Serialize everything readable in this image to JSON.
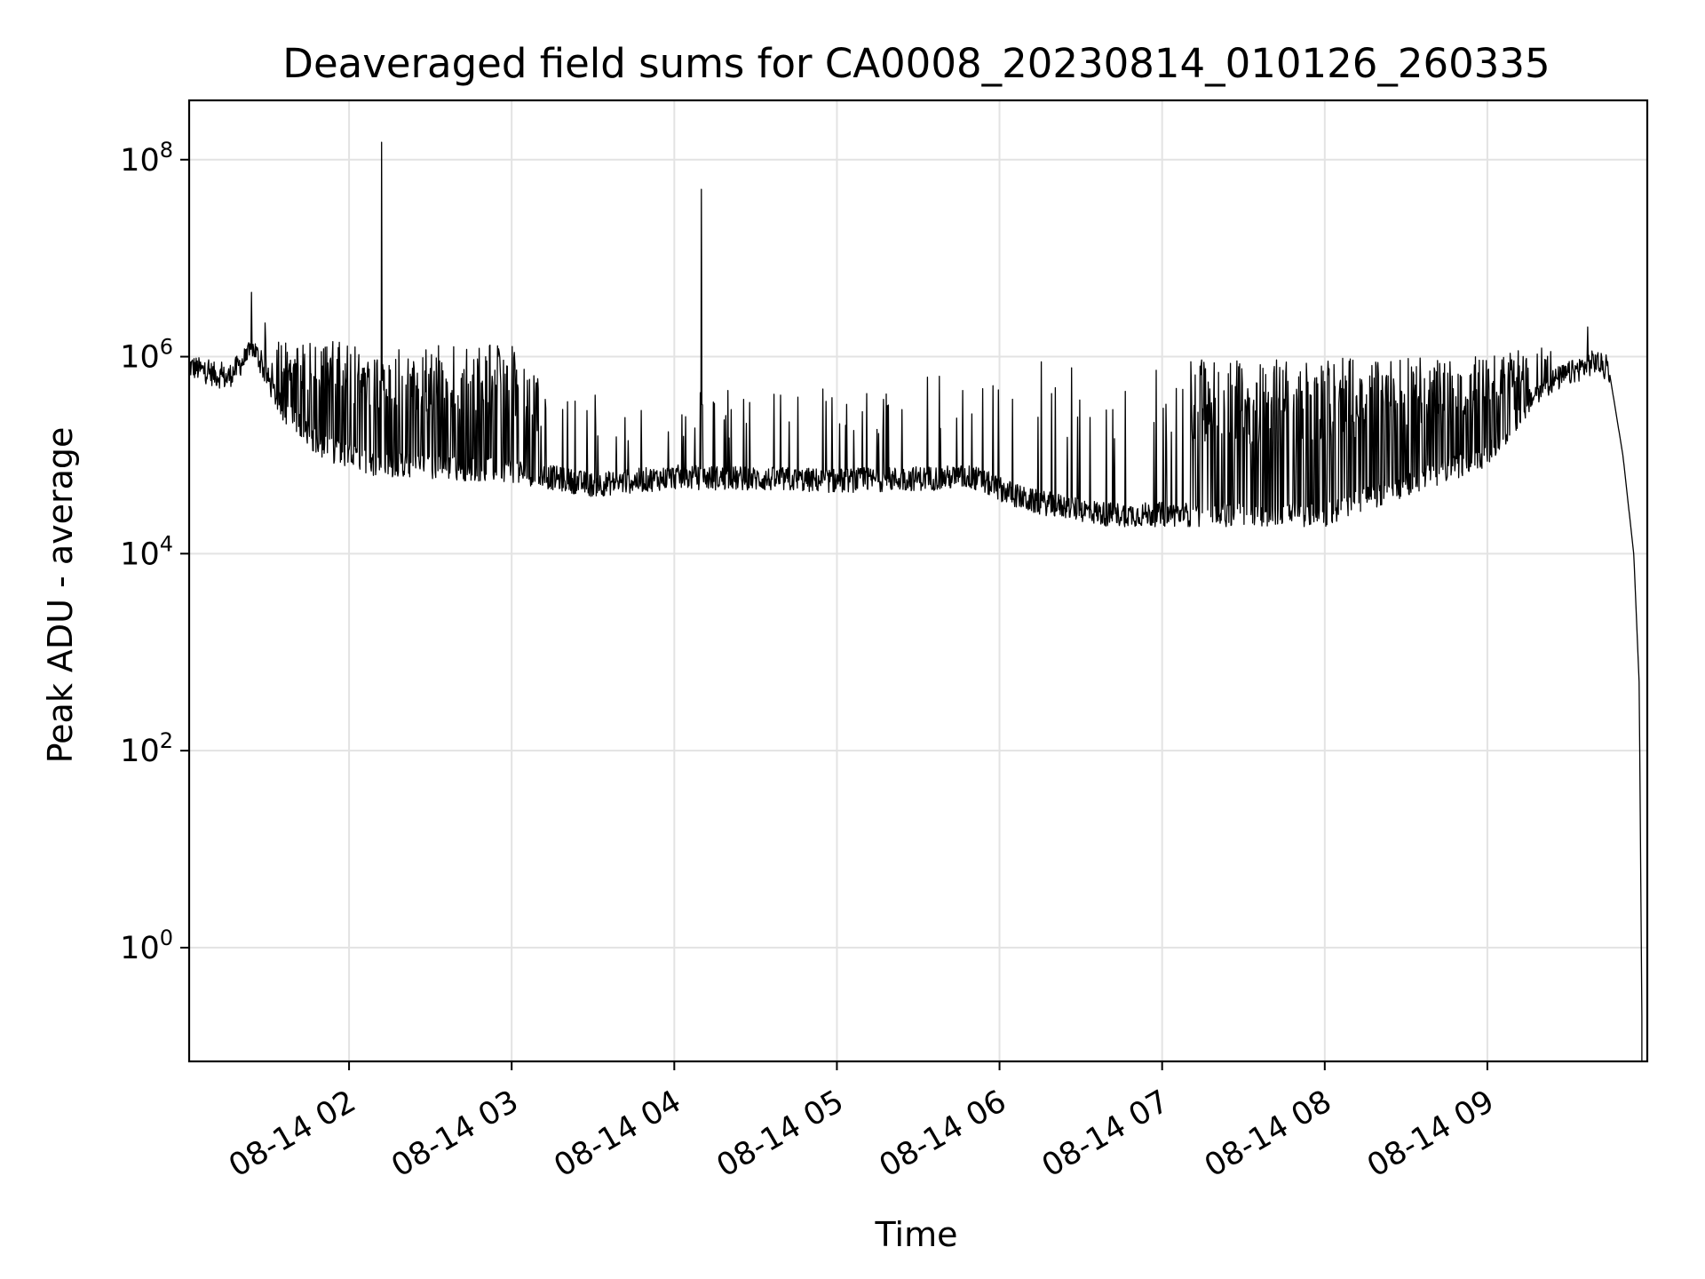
{
  "chart_data": {
    "type": "line",
    "title": "Deaveraged field sums for CA0008_20230814_010126_260335",
    "xlabel": "Time",
    "ylabel": "Peak ADU - average",
    "yscale": "log",
    "ylim": [
      0.07,
      400000000.0
    ],
    "xlim": [
      "08-14 01:01",
      "08-14 09:59"
    ],
    "grid": true,
    "line_color": "#000000",
    "x_ticks": [
      {
        "label": "08-14 02",
        "time": "08-14 02:00"
      },
      {
        "label": "08-14 03",
        "time": "08-14 03:00"
      },
      {
        "label": "08-14 04",
        "time": "08-14 04:00"
      },
      {
        "label": "08-14 05",
        "time": "08-14 05:00"
      },
      {
        "label": "08-14 06",
        "time": "08-14 06:00"
      },
      {
        "label": "08-14 07",
        "time": "08-14 07:00"
      },
      {
        "label": "08-14 08",
        "time": "08-14 08:00"
      },
      {
        "label": "08-14 09",
        "time": "08-14 09:00"
      }
    ],
    "y_ticks": [
      {
        "base": "10",
        "exp": "0",
        "value": 1
      },
      {
        "base": "10",
        "exp": "2",
        "value": 100
      },
      {
        "base": "10",
        "exp": "4",
        "value": 10000
      },
      {
        "base": "10",
        "exp": "6",
        "value": 1000000
      },
      {
        "base": "10",
        "exp": "8",
        "value": 100000000
      }
    ],
    "baseline": [
      {
        "t": "08-14 01:01",
        "v": 800000
      },
      {
        "t": "08-14 01:15",
        "v": 600000
      },
      {
        "t": "08-14 01:25",
        "v": 1200000
      },
      {
        "t": "08-14 01:35",
        "v": 300000
      },
      {
        "t": "08-14 01:50",
        "v": 120000
      },
      {
        "t": "08-14 02:10",
        "v": 80000
      },
      {
        "t": "08-14 03:00",
        "v": 70000
      },
      {
        "t": "08-14 03:30",
        "v": 50000
      },
      {
        "t": "08-14 04:00",
        "v": 60000
      },
      {
        "t": "08-14 05:00",
        "v": 55000
      },
      {
        "t": "08-14 05:50",
        "v": 60000
      },
      {
        "t": "08-14 06:10",
        "v": 35000
      },
      {
        "t": "08-14 06:40",
        "v": 25000
      },
      {
        "t": "08-14 07:30",
        "v": 25000
      },
      {
        "t": "08-14 08:00",
        "v": 25000
      },
      {
        "t": "08-14 08:30",
        "v": 50000
      },
      {
        "t": "08-14 09:00",
        "v": 100000
      },
      {
        "t": "08-14 09:20",
        "v": 500000
      },
      {
        "t": "08-14 09:40",
        "v": 900000
      },
      {
        "t": "08-14 09:45",
        "v": 700000
      },
      {
        "t": "08-14 09:50",
        "v": 100000
      },
      {
        "t": "08-14 09:54",
        "v": 10000
      },
      {
        "t": "08-14 09:56",
        "v": 500
      },
      {
        "t": "08-14 09:57",
        "v": 0.2
      }
    ],
    "upper_envelope": [
      {
        "t": "08-14 01:01",
        "v": 900000
      },
      {
        "t": "08-14 01:30",
        "v": 1500000
      },
      {
        "t": "08-14 03:00",
        "v": 1300000
      },
      {
        "t": "08-14 03:15",
        "v": 400000
      },
      {
        "t": "08-14 05:00",
        "v": 500000
      },
      {
        "t": "08-14 06:00",
        "v": 900000
      },
      {
        "t": "08-14 09:00",
        "v": 1000000
      },
      {
        "t": "08-14 09:30",
        "v": 1500000
      },
      {
        "t": "08-14 09:45",
        "v": 1100000
      }
    ],
    "dense_bands": [
      {
        "start": "08-14 01:35",
        "end": "08-14 03:10"
      },
      {
        "start": "08-14 07:10",
        "end": "08-14 09:15"
      }
    ],
    "spikes": [
      {
        "t": "08-14 01:24",
        "v": 4500000
      },
      {
        "t": "08-14 01:29",
        "v": 2200000
      },
      {
        "t": "08-14 02:12",
        "v": 150000000
      },
      {
        "t": "08-14 04:10",
        "v": 50000000
      },
      {
        "t": "08-14 09:37",
        "v": 2000000
      }
    ]
  }
}
